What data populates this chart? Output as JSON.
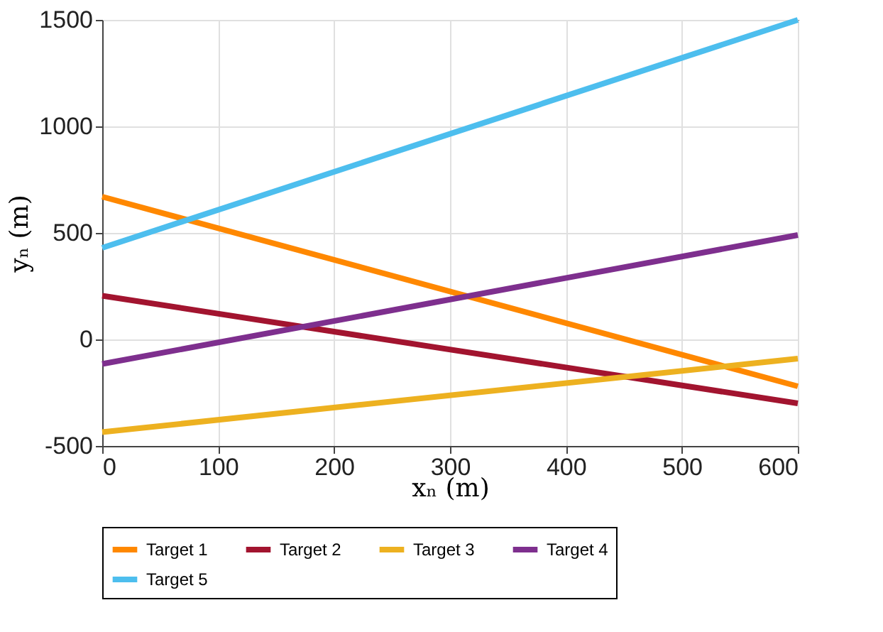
{
  "chart_data": {
    "type": "line",
    "xlabel": "xₙ (m)",
    "ylabel": "yₙ (m)",
    "x": [
      0,
      600
    ],
    "series": [
      {
        "name": "Target 1",
        "color": "#ff8800",
        "values": [
          670,
          -220
        ]
      },
      {
        "name": "Target 2",
        "color": "#a2142f",
        "values": [
          205,
          -300
        ]
      },
      {
        "name": "Target 3",
        "color": "#edb120",
        "values": [
          -435,
          -90
        ]
      },
      {
        "name": "Target 4",
        "color": "#7e2f8e",
        "values": [
          -115,
          490
        ]
      },
      {
        "name": "Target 5",
        "color": "#4dbeee",
        "values": [
          430,
          1500
        ]
      }
    ],
    "xlim": [
      0,
      600
    ],
    "xticks": [
      0,
      100,
      200,
      300,
      400,
      500,
      600
    ],
    "ylim": [
      -500,
      1500
    ],
    "yticks": [
      -500,
      0,
      500,
      1000,
      1500
    ],
    "grid": true,
    "legend": "bottom",
    "line_style": "solid"
  }
}
